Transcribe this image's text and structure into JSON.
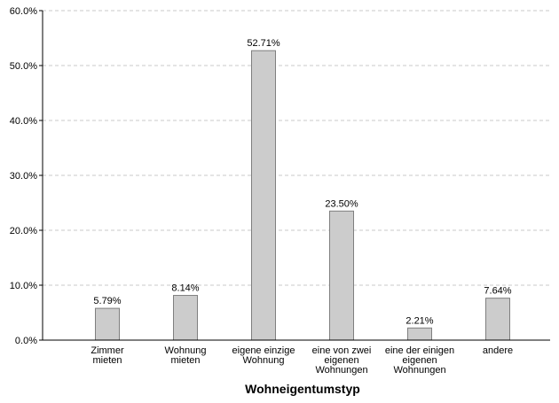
{
  "chart_data": {
    "type": "bar",
    "title": "",
    "xlabel": "Wohneigentumstyp",
    "ylabel": "",
    "categories": [
      [
        "Zimmer",
        "mieten"
      ],
      [
        "Wohnung",
        "mieten"
      ],
      [
        "eigene einzige",
        "Wohnung"
      ],
      [
        "eine von zwei",
        "eigenen",
        "Wohnungen"
      ],
      [
        "eine der einigen",
        "eigenen",
        "Wohnungen"
      ],
      [
        "andere"
      ]
    ],
    "values": [
      5.79,
      8.14,
      52.71,
      23.5,
      2.21,
      7.64
    ],
    "value_labels": [
      "5.79%",
      "8.14%",
      "52.71%",
      "23.50%",
      "2.21%",
      "7.64%"
    ],
    "ylim": [
      0,
      60
    ],
    "yticks": [
      0,
      10,
      20,
      30,
      40,
      50,
      60
    ],
    "ytick_labels": [
      "0.0%",
      "10.0%",
      "20.0%",
      "30.0%",
      "40.0%",
      "50.0%",
      "60.0%"
    ],
    "grid": true,
    "legend": "none",
    "colors": {
      "bar_fill": "#cccccc",
      "bar_stroke": "#7f7f7f",
      "grid": "#c8c8c8",
      "axis": "#000000"
    }
  }
}
